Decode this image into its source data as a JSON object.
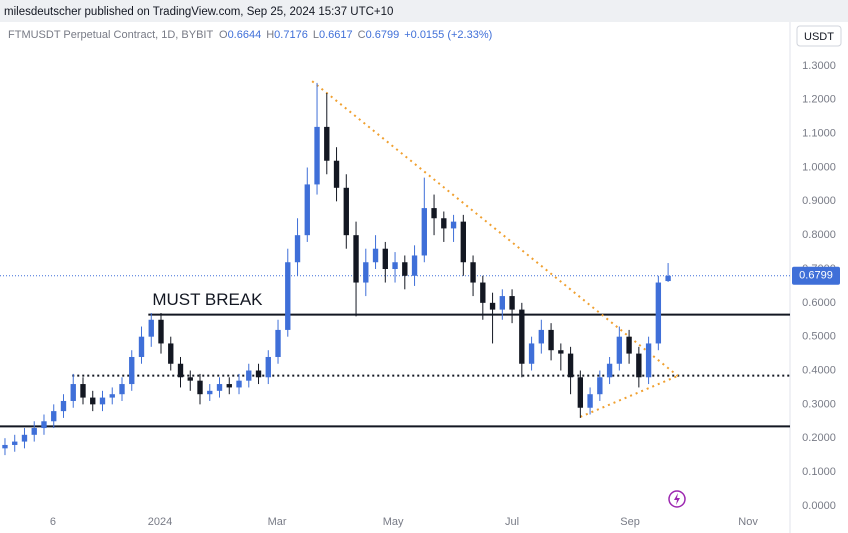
{
  "publisher": "milesdeutscher published on TradingView.com, Sep 25, 2024 15:37 UTC+10",
  "chart_data": {
    "type": "candlestick",
    "symbol": "FTMUSDT Perpetual Contract, 1D, BYBIT",
    "ohlc_letters": [
      "O",
      "H",
      "L",
      "C"
    ],
    "change": "+0.0155 (+2.33%)",
    "currency": "USDT",
    "up_color": "#3f6fd8",
    "down_color": "#131722",
    "open": [
      0.17,
      0.18,
      0.19,
      0.21,
      0.23,
      0.25,
      0.28,
      0.31,
      0.36,
      0.32,
      0.3,
      0.32,
      0.33,
      0.36,
      0.44,
      0.5,
      0.55,
      0.48,
      0.42,
      0.38,
      0.37,
      0.33,
      0.34,
      0.36,
      0.35,
      0.37,
      0.4,
      0.38,
      0.44,
      0.52,
      0.72,
      0.8,
      0.95,
      1.12,
      1.02,
      0.94,
      0.8,
      0.66,
      0.72,
      0.76,
      0.7,
      0.72,
      0.68,
      0.74,
      0.88,
      0.85,
      0.82,
      0.84,
      0.72,
      0.66,
      0.6,
      0.58,
      0.62,
      0.58,
      0.42,
      0.48,
      0.52,
      0.46,
      0.45,
      0.38,
      0.29,
      0.33,
      0.38,
      0.42,
      0.5,
      0.45,
      0.38,
      0.48,
      0.6644
    ],
    "high": [
      0.2,
      0.21,
      0.23,
      0.25,
      0.27,
      0.3,
      0.33,
      0.39,
      0.38,
      0.34,
      0.34,
      0.35,
      0.38,
      0.46,
      0.53,
      0.57,
      0.57,
      0.5,
      0.44,
      0.4,
      0.39,
      0.36,
      0.38,
      0.38,
      0.39,
      0.42,
      0.42,
      0.46,
      0.55,
      0.76,
      0.85,
      1.0,
      1.25,
      1.22,
      1.06,
      0.98,
      0.84,
      0.76,
      0.8,
      0.78,
      0.75,
      0.74,
      0.77,
      0.97,
      0.92,
      0.87,
      0.86,
      0.86,
      0.74,
      0.68,
      0.63,
      0.64,
      0.64,
      0.6,
      0.5,
      0.55,
      0.54,
      0.48,
      0.47,
      0.4,
      0.35,
      0.4,
      0.44,
      0.53,
      0.52,
      0.47,
      0.5,
      0.68,
      0.7176
    ],
    "low": [
      0.15,
      0.16,
      0.17,
      0.19,
      0.21,
      0.23,
      0.26,
      0.29,
      0.3,
      0.28,
      0.28,
      0.3,
      0.31,
      0.34,
      0.42,
      0.47,
      0.45,
      0.4,
      0.35,
      0.34,
      0.3,
      0.31,
      0.32,
      0.33,
      0.33,
      0.35,
      0.36,
      0.36,
      0.42,
      0.5,
      0.68,
      0.78,
      0.92,
      0.98,
      0.9,
      0.76,
      0.56,
      0.62,
      0.7,
      0.66,
      0.66,
      0.64,
      0.65,
      0.72,
      0.8,
      0.78,
      0.78,
      0.68,
      0.62,
      0.55,
      0.48,
      0.55,
      0.54,
      0.38,
      0.4,
      0.45,
      0.43,
      0.4,
      0.33,
      0.26,
      0.27,
      0.31,
      0.36,
      0.4,
      0.42,
      0.35,
      0.36,
      0.46,
      0.6617
    ],
    "close": [
      0.18,
      0.19,
      0.21,
      0.23,
      0.25,
      0.28,
      0.31,
      0.36,
      0.32,
      0.3,
      0.32,
      0.33,
      0.36,
      0.44,
      0.5,
      0.55,
      0.48,
      0.42,
      0.38,
      0.37,
      0.33,
      0.34,
      0.36,
      0.35,
      0.37,
      0.4,
      0.38,
      0.44,
      0.52,
      0.72,
      0.8,
      0.95,
      1.12,
      1.02,
      0.94,
      0.8,
      0.66,
      0.72,
      0.76,
      0.7,
      0.72,
      0.68,
      0.74,
      0.88,
      0.85,
      0.82,
      0.84,
      0.72,
      0.66,
      0.6,
      0.58,
      0.62,
      0.58,
      0.42,
      0.48,
      0.52,
      0.46,
      0.45,
      0.38,
      0.29,
      0.33,
      0.38,
      0.42,
      0.5,
      0.45,
      0.38,
      0.48,
      0.66,
      0.6799
    ],
    "xlim": [
      -0.51,
      80.5
    ],
    "xticks": [
      {
        "value": 4.92,
        "label": "6"
      },
      {
        "value": 15.9,
        "label": "2024"
      },
      {
        "value": 27.9,
        "label": "Mar"
      },
      {
        "value": 39.8,
        "label": "May"
      },
      {
        "value": 52.0,
        "label": "Jul"
      },
      {
        "value": 64.1,
        "label": "Sep"
      },
      {
        "value": 76.2,
        "label": "Nov"
      }
    ],
    "ylim": [
      -0.027,
      1.43
    ],
    "yticks": [
      {
        "value": 0,
        "label": "0.0000"
      },
      {
        "value": 0.1,
        "label": "0.1000"
      },
      {
        "value": 0.2,
        "label": "0.2000"
      },
      {
        "value": 0.3,
        "label": "0.3000"
      },
      {
        "value": 0.4,
        "label": "0.4000"
      },
      {
        "value": 0.5,
        "label": "0.5000"
      },
      {
        "value": 0.6,
        "label": "0.6000"
      },
      {
        "value": 0.7,
        "label": "0.7000"
      },
      {
        "value": 0.8,
        "label": "0.8000"
      },
      {
        "value": 0.9,
        "label": "0.9000"
      },
      {
        "value": 1.0,
        "label": "1.0000"
      },
      {
        "value": 1.1,
        "label": "1.1000"
      },
      {
        "value": 1.2,
        "label": "1.2000"
      },
      {
        "value": 1.3,
        "label": "1.3000"
      }
    ],
    "levels": [
      {
        "value": 0.565,
        "start": 14.7,
        "style": "solid"
      },
      {
        "value": 0.385,
        "start": 6.9,
        "style": "dotted"
      },
      {
        "value": 0.235,
        "start": -0.51,
        "style": "solid"
      }
    ],
    "trendlines": [
      {
        "x": [
          31.5,
          69.0
        ],
        "y": [
          1.255,
          0.384
        ],
        "color": "#f0a030"
      },
      {
        "x": [
          59.0,
          69.0
        ],
        "y": [
          0.263,
          0.384
        ],
        "color": "#f0a030"
      }
    ],
    "annotation": "MUST BREAK"
  }
}
